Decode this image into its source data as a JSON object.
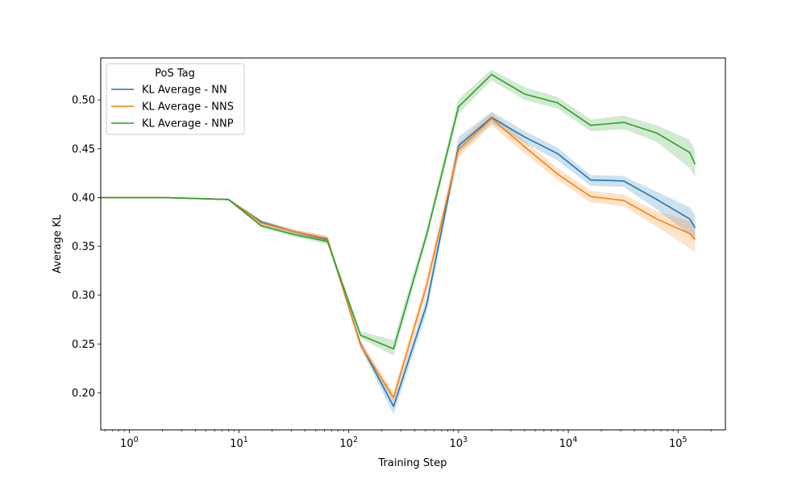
{
  "chart_data": {
    "type": "line",
    "title": "",
    "xlabel": "Training Step",
    "ylabel": "Average KL",
    "xscale": "log",
    "xlim": [
      0.55,
      270000
    ],
    "ylim": [
      0.162,
      0.543
    ],
    "x_ticks": [
      {
        "value": 1,
        "base": "10",
        "exp": "0"
      },
      {
        "value": 10,
        "base": "10",
        "exp": "1"
      },
      {
        "value": 100,
        "base": "10",
        "exp": "2"
      },
      {
        "value": 1000,
        "base": "10",
        "exp": "3"
      },
      {
        "value": 10000,
        "base": "10",
        "exp": "4"
      },
      {
        "value": 100000,
        "base": "10",
        "exp": "5"
      }
    ],
    "y_ticks": [
      0.2,
      0.25,
      0.3,
      0.35,
      0.4,
      0.45,
      0.5
    ],
    "y_tick_labels": [
      "0.20",
      "0.25",
      "0.30",
      "0.35",
      "0.40",
      "0.45",
      "0.50"
    ],
    "grid": false,
    "legend": {
      "title": "PoS Tag",
      "placement": "top-left"
    },
    "x": [
      0.5,
      1,
      2,
      4,
      8,
      16,
      32,
      64,
      128,
      256,
      512,
      1000,
      2000,
      4000,
      8000,
      16000,
      32000,
      64000,
      128000,
      143000
    ],
    "series": [
      {
        "name": "KL Average - NN",
        "color": "#1f77b4",
        "values": [
          0.4,
          0.4,
          0.4,
          0.399,
          0.398,
          0.375,
          0.365,
          0.357,
          0.25,
          0.186,
          0.29,
          0.453,
          0.482,
          0.462,
          0.445,
          0.418,
          0.417,
          0.398,
          0.378,
          0.369
        ],
        "lower": [
          0.4,
          0.4,
          0.4,
          0.399,
          0.397,
          0.373,
          0.363,
          0.354,
          0.246,
          0.178,
          0.282,
          0.445,
          0.476,
          0.456,
          0.438,
          0.412,
          0.411,
          0.388,
          0.362,
          0.356
        ],
        "upper": [
          0.4,
          0.4,
          0.4,
          0.399,
          0.399,
          0.377,
          0.367,
          0.36,
          0.254,
          0.193,
          0.298,
          0.462,
          0.488,
          0.468,
          0.451,
          0.423,
          0.422,
          0.406,
          0.39,
          0.382
        ]
      },
      {
        "name": "KL Average - NNS",
        "color": "#ff7f0e",
        "values": [
          0.4,
          0.4,
          0.4,
          0.399,
          0.398,
          0.374,
          0.365,
          0.358,
          0.249,
          0.195,
          0.31,
          0.449,
          0.481,
          0.452,
          0.424,
          0.401,
          0.397,
          0.378,
          0.363,
          0.357
        ],
        "lower": [
          0.4,
          0.4,
          0.4,
          0.399,
          0.397,
          0.372,
          0.363,
          0.355,
          0.245,
          0.19,
          0.302,
          0.441,
          0.474,
          0.445,
          0.418,
          0.395,
          0.391,
          0.37,
          0.348,
          0.344
        ],
        "upper": [
          0.4,
          0.4,
          0.4,
          0.399,
          0.399,
          0.376,
          0.367,
          0.361,
          0.253,
          0.201,
          0.318,
          0.456,
          0.487,
          0.458,
          0.43,
          0.407,
          0.403,
          0.386,
          0.376,
          0.369
        ]
      },
      {
        "name": "KL Average - NNP",
        "color": "#2ca02c",
        "values": [
          0.4,
          0.4,
          0.4,
          0.399,
          0.398,
          0.371,
          0.362,
          0.355,
          0.259,
          0.245,
          0.362,
          0.493,
          0.526,
          0.506,
          0.497,
          0.474,
          0.477,
          0.466,
          0.446,
          0.434
        ],
        "lower": [
          0.4,
          0.4,
          0.4,
          0.399,
          0.397,
          0.369,
          0.36,
          0.352,
          0.256,
          0.238,
          0.356,
          0.486,
          0.52,
          0.5,
          0.491,
          0.468,
          0.47,
          0.457,
          0.43,
          0.421
        ],
        "upper": [
          0.4,
          0.4,
          0.4,
          0.399,
          0.399,
          0.373,
          0.364,
          0.358,
          0.263,
          0.254,
          0.368,
          0.501,
          0.531,
          0.513,
          0.503,
          0.48,
          0.484,
          0.474,
          0.459,
          0.448
        ]
      }
    ]
  }
}
